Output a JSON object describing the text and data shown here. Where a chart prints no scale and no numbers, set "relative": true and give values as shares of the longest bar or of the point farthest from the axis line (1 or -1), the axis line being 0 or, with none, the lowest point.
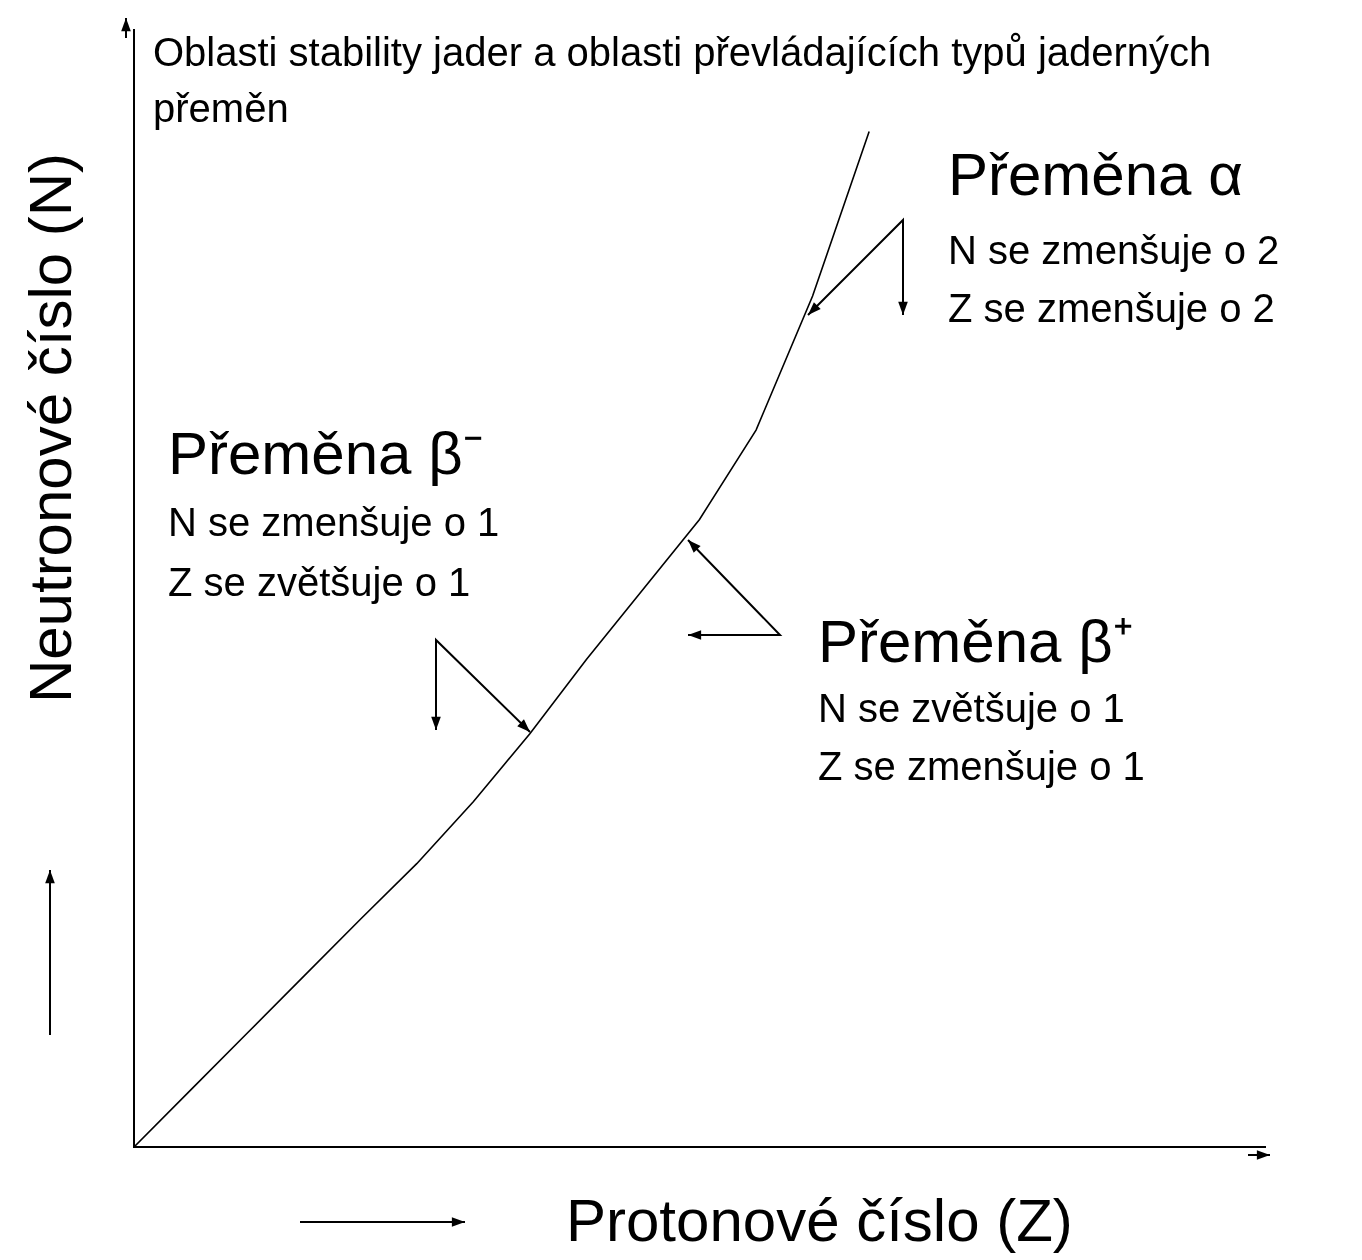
{
  "chart_data": {
    "type": "line",
    "title": "Oblasti stability jader a oblasti převládajících typů jaderných přeměn",
    "xlabel": "Protonové číslo  (Z)",
    "ylabel": "Neutronové číslo  (N)",
    "relative": true,
    "marker": "none",
    "categories": [
      null,
      null,
      null,
      null,
      null,
      null,
      null,
      null,
      null,
      null,
      null,
      null,
      null,
      null,
      null,
      null,
      null,
      null,
      null,
      null,
      null
    ],
    "series": [
      {
        "color": "#000000",
        "values": [
          0,
          0.056,
          0.112,
          0.168,
          0.224,
          0.279,
          0.34,
          0.407,
          0.48,
          0.549,
          0.618,
          0.706,
          0.838,
          1,
          null,
          null,
          null,
          null,
          null,
          null,
          null
        ]
      }
    ],
    "annotations": [
      "Přeměna α",
      "N se zmenšuje o 2",
      "Z se zmenšuje o 2",
      "Přeměna β⁻",
      "N se zmenšuje o 1",
      "Z se zvětšuje o 1",
      "Přeměna β⁺",
      "N se zvětšuje o 1",
      "Z se zmenšuje o 1"
    ]
  }
}
